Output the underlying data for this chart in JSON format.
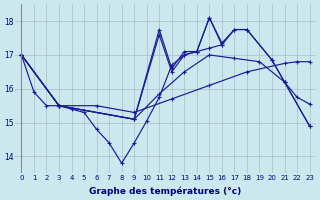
{
  "xlabel": "Graphe des températures (°c)",
  "bg_color": "#cce8ef",
  "grid_color": "#aabbc8",
  "line_color": "#1a1a99",
  "xlim": [
    -0.5,
    23.5
  ],
  "ylim": [
    13.5,
    18.5
  ],
  "yticks": [
    14,
    15,
    16,
    17,
    18
  ],
  "xticks": [
    0,
    1,
    2,
    3,
    4,
    5,
    6,
    7,
    8,
    9,
    10,
    11,
    12,
    13,
    14,
    15,
    16,
    17,
    18,
    19,
    20,
    21,
    22,
    23
  ],
  "s1_x": [
    0,
    1,
    2,
    3,
    4,
    5,
    6,
    7,
    8,
    9,
    10,
    11,
    12,
    13,
    14,
    15,
    16
  ],
  "s1_y": [
    17.0,
    15.9,
    15.5,
    15.5,
    15.4,
    15.3,
    14.8,
    14.4,
    13.8,
    14.4,
    15.05,
    15.75,
    16.7,
    17.0,
    17.1,
    17.2,
    17.3
  ],
  "s2_x": [
    0,
    3,
    9,
    11,
    13,
    15,
    17,
    19,
    21,
    22,
    23
  ],
  "s2_y": [
    17.0,
    15.5,
    15.1,
    15.85,
    16.5,
    17.0,
    16.9,
    16.8,
    16.2,
    15.75,
    15.55
  ],
  "s3_x": [
    0,
    3,
    6,
    9,
    12,
    15,
    18,
    21,
    22,
    23
  ],
  "s3_y": [
    17.0,
    15.5,
    15.5,
    15.3,
    15.7,
    16.1,
    16.5,
    16.75,
    16.8,
    16.8
  ],
  "s4_x": [
    0,
    3,
    9,
    11,
    12,
    13,
    14,
    15,
    16,
    17,
    18,
    20,
    21,
    23
  ],
  "s4_y": [
    17.0,
    15.5,
    15.1,
    17.75,
    16.6,
    17.1,
    17.1,
    18.1,
    17.3,
    17.75,
    17.75,
    16.85,
    16.2,
    14.9
  ],
  "s5_x": [
    0,
    3,
    9,
    11,
    12,
    13,
    14,
    15,
    16,
    17,
    18,
    20,
    21,
    23
  ],
  "s5_y": [
    17.0,
    15.5,
    15.1,
    17.6,
    16.5,
    17.0,
    17.1,
    18.1,
    17.35,
    17.75,
    17.75,
    16.85,
    16.2,
    14.9
  ]
}
